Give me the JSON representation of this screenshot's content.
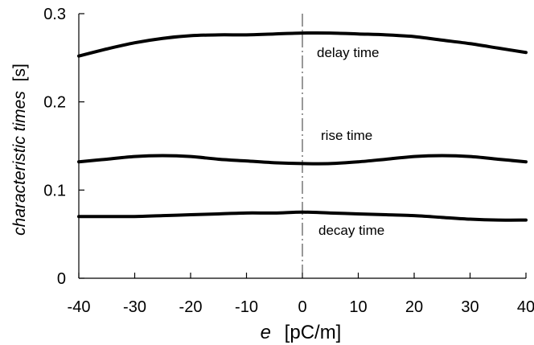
{
  "chart_data": {
    "type": "line",
    "title": "",
    "xlabel": {
      "var": "e",
      "unit": "[pC/m]"
    },
    "ylabel": {
      "text": "characteristic times",
      "unit": "[s]"
    },
    "xlim": [
      -40,
      40
    ],
    "ylim": [
      0,
      0.3
    ],
    "xticks": [
      -40,
      -30,
      -20,
      -10,
      0,
      10,
      20,
      30,
      40
    ],
    "xtick_labels": [
      "-40",
      "-30",
      "-20",
      "-10",
      "0",
      "10",
      "20",
      "30",
      "40"
    ],
    "yticks": [
      0,
      0.1,
      0.2,
      0.3
    ],
    "ytick_labels": [
      "0",
      "0.1",
      "0.2",
      "0.3"
    ],
    "grid": false,
    "legend": "none",
    "reference_line": {
      "x": 0,
      "style": "dash-dot"
    },
    "line_color": "#000000",
    "series": [
      {
        "name": "delay time",
        "x": [
          -40,
          -35,
          -30,
          -25,
          -20,
          -15,
          -10,
          -5,
          0,
          5,
          10,
          15,
          20,
          25,
          30,
          35,
          40
        ],
        "y": [
          0.252,
          0.26,
          0.267,
          0.272,
          0.275,
          0.276,
          0.276,
          0.277,
          0.278,
          0.278,
          0.277,
          0.276,
          0.274,
          0.27,
          0.266,
          0.261,
          0.256
        ]
      },
      {
        "name": "rise time",
        "x": [
          -40,
          -35,
          -30,
          -25,
          -20,
          -15,
          -10,
          -5,
          0,
          5,
          10,
          15,
          20,
          25,
          30,
          35,
          40
        ],
        "y": [
          0.132,
          0.135,
          0.138,
          0.139,
          0.138,
          0.135,
          0.133,
          0.131,
          0.13,
          0.13,
          0.132,
          0.135,
          0.138,
          0.139,
          0.138,
          0.135,
          0.132
        ]
      },
      {
        "name": "decay time",
        "x": [
          -40,
          -35,
          -30,
          -25,
          -20,
          -15,
          -10,
          -5,
          0,
          5,
          10,
          15,
          20,
          25,
          30,
          35,
          40
        ],
        "y": [
          0.07,
          0.07,
          0.07,
          0.071,
          0.072,
          0.073,
          0.074,
          0.074,
          0.075,
          0.074,
          0.073,
          0.072,
          0.071,
          0.069,
          0.067,
          0.066,
          0.066
        ]
      }
    ]
  }
}
